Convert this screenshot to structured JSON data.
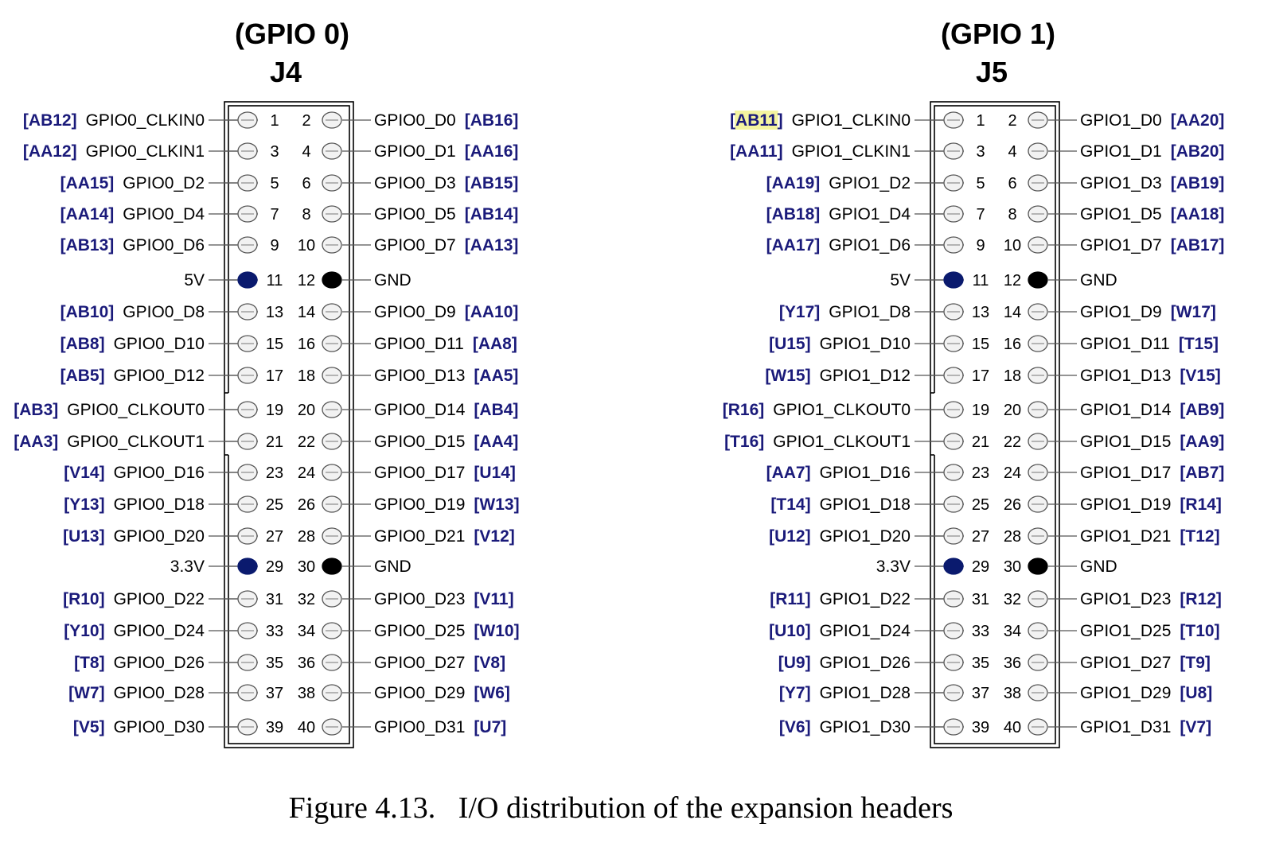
{
  "caption": "Figure 4.13.   I/O distribution of the expansion headers",
  "colors": {
    "fpga_label": "#1a1a7a",
    "power_pin": "#0a1a6e",
    "ground_pin": "#000000",
    "signal_pin_fill": "#f2f2f2",
    "highlight": "#f4f4a0"
  },
  "headers": [
    {
      "group": "(GPIO 0)",
      "connector": "J4",
      "pins": [
        {
          "num": 1,
          "signal": "GPIO0_CLKIN0",
          "fpga": "[AB12]",
          "type": "io"
        },
        {
          "num": 2,
          "signal": "GPIO0_D0",
          "fpga": "[AB16]",
          "type": "io"
        },
        {
          "num": 3,
          "signal": "GPIO0_CLKIN1",
          "fpga": "[AA12]",
          "type": "io"
        },
        {
          "num": 4,
          "signal": "GPIO0_D1",
          "fpga": "[AA16]",
          "type": "io"
        },
        {
          "num": 5,
          "signal": "GPIO0_D2",
          "fpga": "[AA15]",
          "type": "io"
        },
        {
          "num": 6,
          "signal": "GPIO0_D3",
          "fpga": "[AB15]",
          "type": "io"
        },
        {
          "num": 7,
          "signal": "GPIO0_D4",
          "fpga": "[AA14]",
          "type": "io"
        },
        {
          "num": 8,
          "signal": "GPIO0_D5",
          "fpga": "[AB14]",
          "type": "io"
        },
        {
          "num": 9,
          "signal": "GPIO0_D6",
          "fpga": "[AB13]",
          "type": "io"
        },
        {
          "num": 10,
          "signal": "GPIO0_D7",
          "fpga": "[AA13]",
          "type": "io"
        },
        {
          "num": 11,
          "signal": "5V",
          "fpga": "",
          "type": "power"
        },
        {
          "num": 12,
          "signal": "GND",
          "fpga": "",
          "type": "ground"
        },
        {
          "num": 13,
          "signal": "GPIO0_D8",
          "fpga": "[AB10]",
          "type": "io"
        },
        {
          "num": 14,
          "signal": "GPIO0_D9",
          "fpga": "[AA10]",
          "type": "io"
        },
        {
          "num": 15,
          "signal": "GPIO0_D10",
          "fpga": "[AB8]",
          "type": "io"
        },
        {
          "num": 16,
          "signal": "GPIO0_D11",
          "fpga": "[AA8]",
          "type": "io"
        },
        {
          "num": 17,
          "signal": "GPIO0_D12",
          "fpga": "[AB5]",
          "type": "io"
        },
        {
          "num": 18,
          "signal": "GPIO0_D13",
          "fpga": "[AA5]",
          "type": "io"
        },
        {
          "num": 19,
          "signal": "GPIO0_CLKOUT0",
          "fpga": "[AB3]",
          "type": "io"
        },
        {
          "num": 20,
          "signal": "GPIO0_D14",
          "fpga": "[AB4]",
          "type": "io"
        },
        {
          "num": 21,
          "signal": "GPIO0_CLKOUT1",
          "fpga": "[AA3]",
          "type": "io"
        },
        {
          "num": 22,
          "signal": "GPIO0_D15",
          "fpga": "[AA4]",
          "type": "io"
        },
        {
          "num": 23,
          "signal": "GPIO0_D16",
          "fpga": "[V14]",
          "type": "io"
        },
        {
          "num": 24,
          "signal": "GPIO0_D17",
          "fpga": "[U14]",
          "type": "io"
        },
        {
          "num": 25,
          "signal": "GPIO0_D18",
          "fpga": "[Y13]",
          "type": "io"
        },
        {
          "num": 26,
          "signal": "GPIO0_D19",
          "fpga": "[W13]",
          "type": "io"
        },
        {
          "num": 27,
          "signal": "GPIO0_D20",
          "fpga": "[U13]",
          "type": "io"
        },
        {
          "num": 28,
          "signal": "GPIO0_D21",
          "fpga": "[V12]",
          "type": "io"
        },
        {
          "num": 29,
          "signal": "3.3V",
          "fpga": "",
          "type": "power"
        },
        {
          "num": 30,
          "signal": "GND",
          "fpga": "",
          "type": "ground"
        },
        {
          "num": 31,
          "signal": "GPIO0_D22",
          "fpga": "[R10]",
          "type": "io"
        },
        {
          "num": 32,
          "signal": "GPIO0_D23",
          "fpga": "[V11]",
          "type": "io"
        },
        {
          "num": 33,
          "signal": "GPIO0_D24",
          "fpga": "[Y10]",
          "type": "io"
        },
        {
          "num": 34,
          "signal": "GPIO0_D25",
          "fpga": "[W10]",
          "type": "io"
        },
        {
          "num": 35,
          "signal": "GPIO0_D26",
          "fpga": "[T8]",
          "type": "io"
        },
        {
          "num": 36,
          "signal": "GPIO0_D27",
          "fpga": "[V8]",
          "type": "io"
        },
        {
          "num": 37,
          "signal": "GPIO0_D28",
          "fpga": "[W7]",
          "type": "io"
        },
        {
          "num": 38,
          "signal": "GPIO0_D29",
          "fpga": "[W6]",
          "type": "io"
        },
        {
          "num": 39,
          "signal": "GPIO0_D30",
          "fpga": "[V5]",
          "type": "io"
        },
        {
          "num": 40,
          "signal": "GPIO0_D31",
          "fpga": "[U7]",
          "type": "io"
        }
      ]
    },
    {
      "group": "(GPIO 1)",
      "connector": "J5",
      "pins": [
        {
          "num": 1,
          "signal": "GPIO1_CLKIN0",
          "fpga": "[AB11]",
          "type": "io",
          "highlight": true
        },
        {
          "num": 2,
          "signal": "GPIO1_D0",
          "fpga": "[AA20]",
          "type": "io"
        },
        {
          "num": 3,
          "signal": "GPIO1_CLKIN1",
          "fpga": "[AA11]",
          "type": "io"
        },
        {
          "num": 4,
          "signal": "GPIO1_D1",
          "fpga": "[AB20]",
          "type": "io"
        },
        {
          "num": 5,
          "signal": "GPIO1_D2",
          "fpga": "[AA19]",
          "type": "io"
        },
        {
          "num": 6,
          "signal": "GPIO1_D3",
          "fpga": "[AB19]",
          "type": "io"
        },
        {
          "num": 7,
          "signal": "GPIO1_D4",
          "fpga": "[AB18]",
          "type": "io"
        },
        {
          "num": 8,
          "signal": "GPIO1_D5",
          "fpga": "[AA18]",
          "type": "io"
        },
        {
          "num": 9,
          "signal": "GPIO1_D6",
          "fpga": "[AA17]",
          "type": "io"
        },
        {
          "num": 10,
          "signal": "GPIO1_D7",
          "fpga": "[AB17]",
          "type": "io"
        },
        {
          "num": 11,
          "signal": "5V",
          "fpga": "",
          "type": "power"
        },
        {
          "num": 12,
          "signal": "GND",
          "fpga": "",
          "type": "ground"
        },
        {
          "num": 13,
          "signal": "GPIO1_D8",
          "fpga": "[Y17]",
          "type": "io"
        },
        {
          "num": 14,
          "signal": "GPIO1_D9",
          "fpga": "[W17]",
          "type": "io"
        },
        {
          "num": 15,
          "signal": "GPIO1_D10",
          "fpga": "[U15]",
          "type": "io"
        },
        {
          "num": 16,
          "signal": "GPIO1_D11",
          "fpga": "[T15]",
          "type": "io"
        },
        {
          "num": 17,
          "signal": "GPIO1_D12",
          "fpga": "[W15]",
          "type": "io"
        },
        {
          "num": 18,
          "signal": "GPIO1_D13",
          "fpga": "[V15]",
          "type": "io"
        },
        {
          "num": 19,
          "signal": "GPIO1_CLKOUT0",
          "fpga": "[R16]",
          "type": "io"
        },
        {
          "num": 20,
          "signal": "GPIO1_D14",
          "fpga": "[AB9]",
          "type": "io"
        },
        {
          "num": 21,
          "signal": "GPIO1_CLKOUT1",
          "fpga": "[T16]",
          "type": "io"
        },
        {
          "num": 22,
          "signal": "GPIO1_D15",
          "fpga": "[AA9]",
          "type": "io"
        },
        {
          "num": 23,
          "signal": "GPIO1_D16",
          "fpga": "[AA7]",
          "type": "io"
        },
        {
          "num": 24,
          "signal": "GPIO1_D17",
          "fpga": "[AB7]",
          "type": "io"
        },
        {
          "num": 25,
          "signal": "GPIO1_D18",
          "fpga": "[T14]",
          "type": "io"
        },
        {
          "num": 26,
          "signal": "GPIO1_D19",
          "fpga": "[R14]",
          "type": "io"
        },
        {
          "num": 27,
          "signal": "GPIO1_D20",
          "fpga": "[U12]",
          "type": "io"
        },
        {
          "num": 28,
          "signal": "GPIO1_D21",
          "fpga": "[T12]",
          "type": "io"
        },
        {
          "num": 29,
          "signal": "3.3V",
          "fpga": "",
          "type": "power"
        },
        {
          "num": 30,
          "signal": "GND",
          "fpga": "",
          "type": "ground"
        },
        {
          "num": 31,
          "signal": "GPIO1_D22",
          "fpga": "[R11]",
          "type": "io"
        },
        {
          "num": 32,
          "signal": "GPIO1_D23",
          "fpga": "[R12]",
          "type": "io"
        },
        {
          "num": 33,
          "signal": "GPIO1_D24",
          "fpga": "[U10]",
          "type": "io"
        },
        {
          "num": 34,
          "signal": "GPIO1_D25",
          "fpga": "[T10]",
          "type": "io"
        },
        {
          "num": 35,
          "signal": "GPIO1_D26",
          "fpga": "[U9]",
          "type": "io"
        },
        {
          "num": 36,
          "signal": "GPIO1_D27",
          "fpga": "[T9]",
          "type": "io"
        },
        {
          "num": 37,
          "signal": "GPIO1_D28",
          "fpga": "[Y7]",
          "type": "io"
        },
        {
          "num": 38,
          "signal": "GPIO1_D29",
          "fpga": "[U8]",
          "type": "io"
        },
        {
          "num": 39,
          "signal": "GPIO1_D30",
          "fpga": "[V6]",
          "type": "io"
        },
        {
          "num": 40,
          "signal": "GPIO1_D31",
          "fpga": "[V7]",
          "type": "io"
        }
      ]
    }
  ]
}
